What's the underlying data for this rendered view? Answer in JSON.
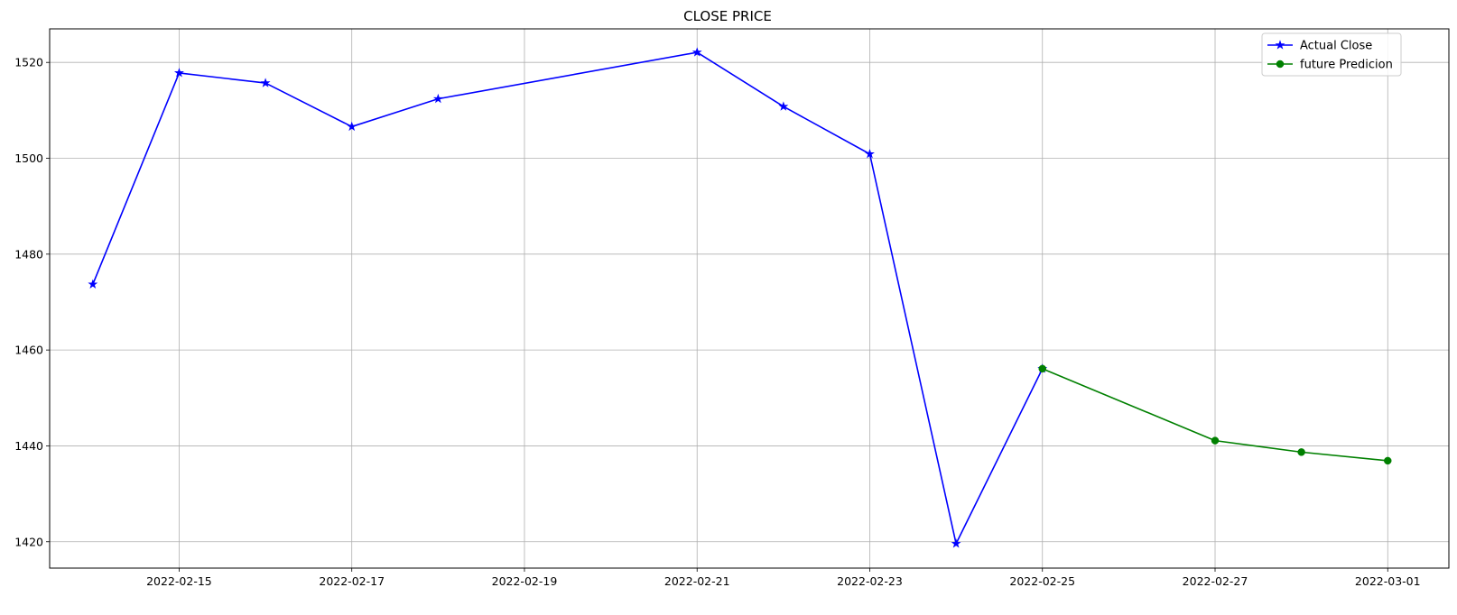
{
  "chart_data": {
    "type": "line",
    "title": "CLOSE PRICE",
    "xlabel": "",
    "ylabel": "",
    "x_axis_type": "date",
    "xlim": [
      "2022-02-13T12:00",
      "2022-03-01T17:00"
    ],
    "ylim": [
      1414.5,
      1527
    ],
    "x_ticks": [
      "2022-02-15",
      "2022-02-17",
      "2022-02-19",
      "2022-02-21",
      "2022-02-23",
      "2022-02-25",
      "2022-02-27",
      "2022-03-01"
    ],
    "y_ticks": [
      1420,
      1440,
      1460,
      1480,
      1500,
      1520
    ],
    "grid": true,
    "legend_position": "top-right",
    "series": [
      {
        "name": "Actual Close",
        "color": "#0000ff",
        "marker": "star",
        "points": [
          {
            "x": "2022-02-14",
            "y": 1473.7
          },
          {
            "x": "2022-02-15",
            "y": 1517.8
          },
          {
            "x": "2022-02-16",
            "y": 1515.7
          },
          {
            "x": "2022-02-17",
            "y": 1506.6
          },
          {
            "x": "2022-02-18",
            "y": 1512.4
          },
          {
            "x": "2022-02-21",
            "y": 1522.1
          },
          {
            "x": "2022-02-22",
            "y": 1510.8
          },
          {
            "x": "2022-02-23",
            "y": 1500.9
          },
          {
            "x": "2022-02-24",
            "y": 1419.6
          },
          {
            "x": "2022-02-25",
            "y": 1456.1
          }
        ]
      },
      {
        "name": "future Predicion",
        "color": "#008000",
        "marker": "circle",
        "points": [
          {
            "x": "2022-02-25",
            "y": 1456.1
          },
          {
            "x": "2022-02-27",
            "y": 1441.1
          },
          {
            "x": "2022-02-28",
            "y": 1438.7
          },
          {
            "x": "2022-03-01",
            "y": 1436.9
          }
        ]
      }
    ]
  }
}
